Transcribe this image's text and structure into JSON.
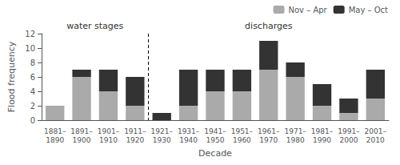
{
  "chart_data": {
    "type": "bar",
    "xlabel": "Decade",
    "ylabel": "Flood frequency",
    "categories": [
      "1881–1890",
      "1891–1900",
      "1901–1910",
      "1911–1920",
      "1921–1930",
      "1931–1940",
      "1941–1950",
      "1951–1960",
      "1961–1970",
      "1971–1980",
      "1981–1990",
      "1991–2000",
      "2001–2010"
    ],
    "series": [
      {
        "name": "Nov – Apr",
        "color": "#aaaaaa",
        "values": [
          2,
          6,
          4,
          2,
          0,
          2,
          4,
          4,
          7,
          6,
          2,
          1,
          3
        ]
      },
      {
        "name": "May – Oct",
        "color": "#333333",
        "values": [
          0,
          1,
          3,
          4,
          1,
          5,
          3,
          3,
          4,
          2,
          3,
          2,
          4
        ]
      }
    ],
    "stacked": true,
    "ylim": [
      0,
      12
    ],
    "yticks": [
      0,
      2,
      4,
      6,
      8,
      10,
      12
    ],
    "grid": false,
    "legend": "upper right",
    "annotations": [
      {
        "text": "water stages",
        "from": "1881–1890",
        "to": "1911–1920"
      },
      {
        "text": "discharges",
        "from": "1921–1930",
        "to": "2001–2010"
      }
    ]
  }
}
